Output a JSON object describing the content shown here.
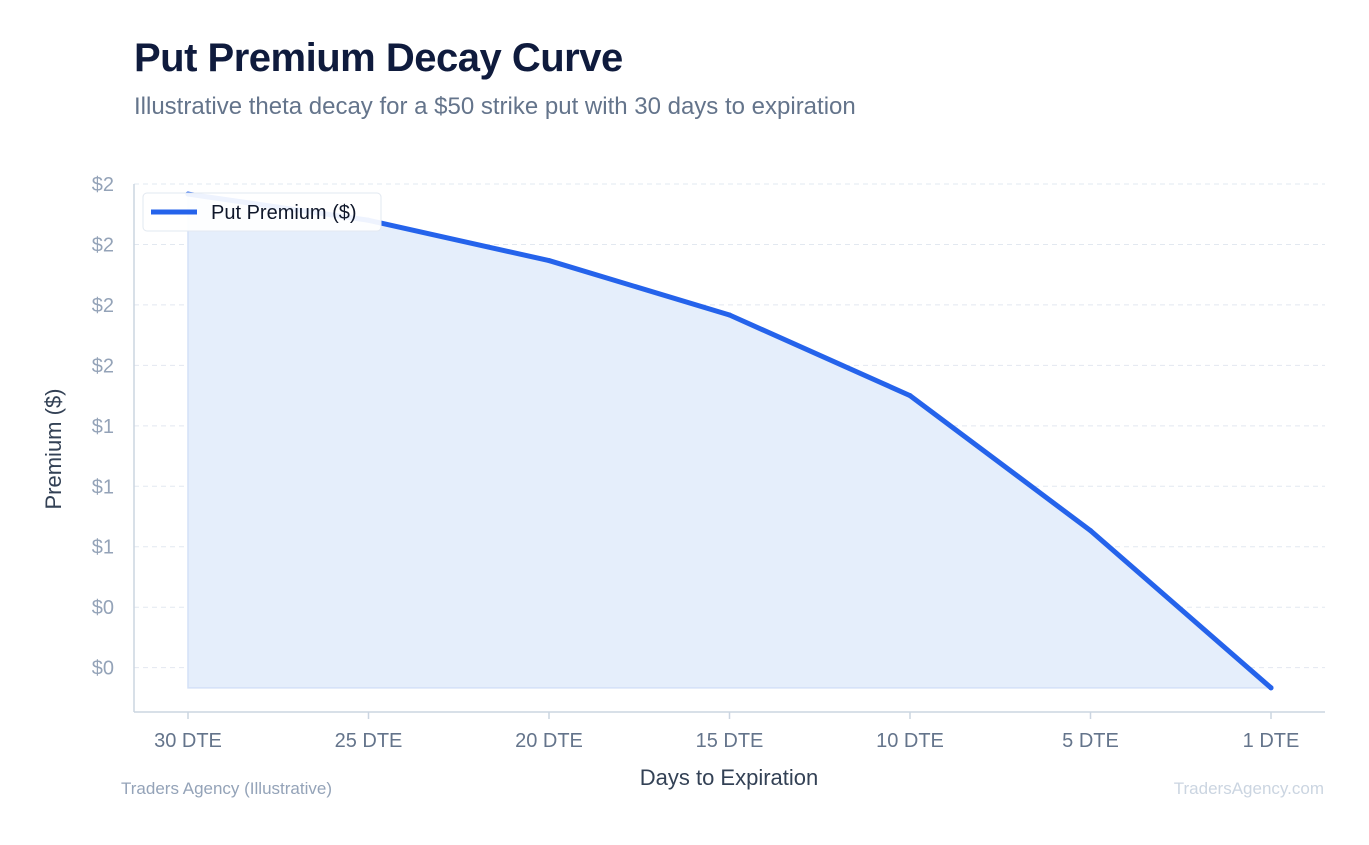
{
  "chart_data": {
    "type": "area",
    "title": "Put Premium Decay Curve",
    "subtitle": "Illustrative theta decay for a $50 strike put with 30 days to expiration",
    "xlabel": "Days to Expiration",
    "ylabel": "Premium ($)",
    "categories": [
      "30 DTE",
      "25 DTE",
      "20 DTE",
      "15 DTE",
      "10 DTE",
      "5 DTE",
      "1 DTE"
    ],
    "series": [
      {
        "name": "Put Premium ($)",
        "values": [
          2.45,
          2.32,
          2.12,
          1.85,
          1.45,
          0.78,
          0.0
        ]
      }
    ],
    "yticks": [
      {
        "value": 0.1,
        "label": "$0"
      },
      {
        "value": 0.4,
        "label": "$0"
      },
      {
        "value": 0.7,
        "label": "$1"
      },
      {
        "value": 1.0,
        "label": "$1"
      },
      {
        "value": 1.3,
        "label": "$1"
      },
      {
        "value": 1.6,
        "label": "$2"
      },
      {
        "value": 1.9,
        "label": "$2"
      },
      {
        "value": 2.2,
        "label": "$2"
      },
      {
        "value": 2.5,
        "label": "$2"
      }
    ],
    "ylim": [
      -0.12,
      2.5
    ],
    "grid": true,
    "legend_position": "top-left",
    "colors": {
      "line": "#2563eb",
      "fill": "#e5eefb",
      "grid": "#e2e8f0",
      "axis": "#cbd5e1",
      "tick_text": "#94a3b8",
      "x_tick_text": "#64748b",
      "axis_label": "#334155"
    }
  },
  "footer": {
    "source": "Traders Agency (Illustrative)",
    "watermark": "TradersAgency.com"
  }
}
